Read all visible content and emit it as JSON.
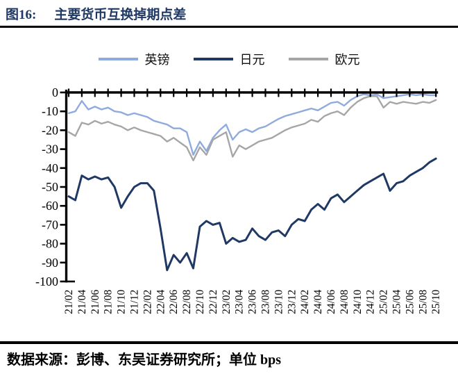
{
  "header": {
    "figure_label": "图16:",
    "title": "主要货币互换掉期点差"
  },
  "footer": {
    "source_note": "数据来源：彭博、东吴证券研究所；单位 bps"
  },
  "colors": {
    "title_text": "#1F3864",
    "axis": "#000000",
    "tick_text": "#000000"
  },
  "chart_data": {
    "type": "line",
    "title": "主要货币互换掉期点差",
    "unit": "bps",
    "xlabel": "",
    "ylabel": "",
    "ylim": [
      -100,
      0
    ],
    "grid": false,
    "legend_position": "top",
    "y_ticks": [
      0,
      -10,
      -20,
      -30,
      -40,
      -50,
      -60,
      -70,
      -80,
      -90,
      -100
    ],
    "x_start": "21/02",
    "x_step_months": 1,
    "x_tick_labels": [
      "21/02",
      "21/04",
      "21/06",
      "21/08",
      "21/10",
      "21/12",
      "22/02",
      "22/04",
      "22/06",
      "22/08",
      "22/10",
      "22/12",
      "23/02",
      "23/04",
      "23/06",
      "23/08",
      "23/10",
      "23/12",
      "24/02",
      "24/04",
      "24/06",
      "24/08",
      "24/10",
      "24/12",
      "25/02",
      "25/04",
      "25/06",
      "25/08",
      "25/10"
    ],
    "series": [
      {
        "name": "英镑",
        "color": "#8FAADC",
        "stroke_width": 2.4,
        "values": [
          -11,
          -10,
          -4.5,
          -9,
          -7.5,
          -9,
          -8,
          -10,
          -10.5,
          -12,
          -11,
          -12,
          -13,
          -15,
          -16,
          -17,
          -19,
          -19,
          -21,
          -33,
          -26,
          -31,
          -24,
          -20,
          -17,
          -25,
          -21,
          -19.5,
          -21,
          -19,
          -18,
          -16,
          -14,
          -12.5,
          -11.5,
          -10.5,
          -9.5,
          -8.5,
          -9.5,
          -7.5,
          -5.5,
          -5,
          -7,
          -4,
          -2,
          -1,
          -1.5,
          -1,
          -3,
          -2.5,
          -2,
          -1.5,
          -1,
          -1.5,
          -1,
          -1.5,
          -1.5
        ]
      },
      {
        "name": "日元",
        "color": "#1F3864",
        "stroke_width": 3.0,
        "values": [
          -55,
          -57,
          -44,
          -46,
          -44.5,
          -46,
          -45,
          -50,
          -61,
          -55,
          -50,
          -48,
          -48,
          -52,
          -72,
          -94,
          -86,
          -90,
          -85,
          -93,
          -71,
          -68,
          -70,
          -69,
          -80,
          -77,
          -79,
          -78,
          -72,
          -76,
          -78,
          -74,
          -73,
          -76,
          -70,
          -67,
          -68,
          -62,
          -59,
          -62,
          -56,
          -54,
          -58,
          -55,
          -52,
          -49,
          -47,
          -45,
          -43,
          -52,
          -48,
          -47,
          -44,
          -42,
          -40,
          -37,
          -35
        ]
      },
      {
        "name": "欧元",
        "color": "#A6A6A6",
        "stroke_width": 2.4,
        "values": [
          -21,
          -23,
          -16,
          -17,
          -15,
          -16.5,
          -15.5,
          -17,
          -18,
          -20,
          -18.5,
          -20,
          -21,
          -22,
          -23,
          -26,
          -24,
          -26.5,
          -29,
          -36,
          -29,
          -33,
          -25,
          -23,
          -21,
          -34,
          -28,
          -30,
          -28,
          -26,
          -25,
          -24,
          -22,
          -20,
          -18.5,
          -17.5,
          -16.5,
          -14.5,
          -15.5,
          -12.5,
          -11,
          -10,
          -12,
          -8,
          -5,
          -3,
          -2,
          -2,
          -8,
          -5,
          -6,
          -5,
          -5.5,
          -6,
          -5,
          -5.5,
          -4
        ]
      }
    ]
  }
}
